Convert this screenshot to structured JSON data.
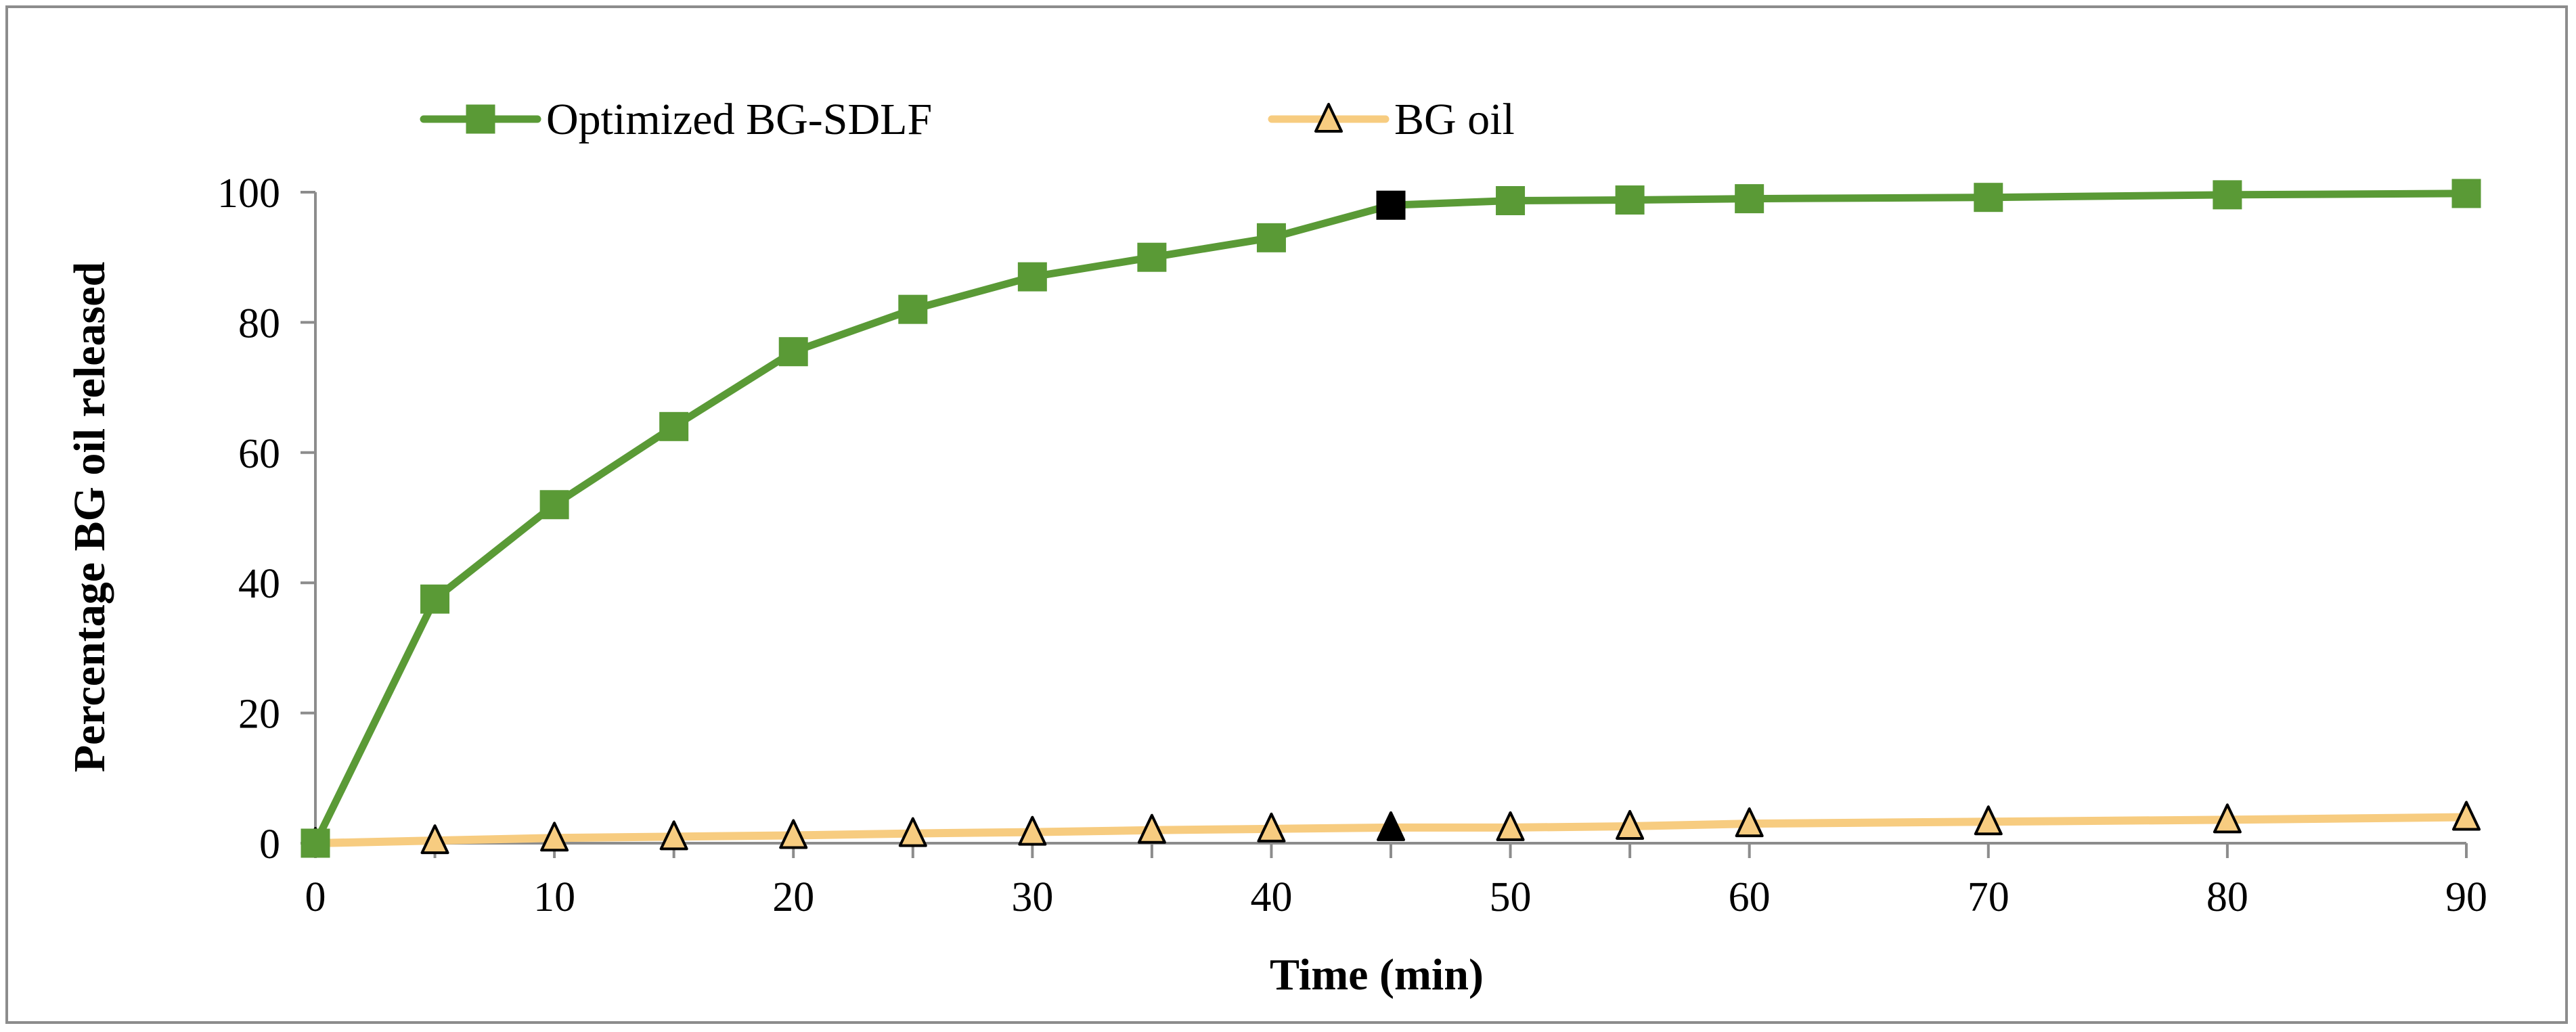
{
  "chart_data": {
    "type": "line",
    "xlabel": "Time (min)",
    "ylabel": "Percentage BG oil released",
    "x": [
      0,
      5,
      10,
      15,
      20,
      25,
      30,
      35,
      40,
      45,
      50,
      55,
      60,
      70,
      80,
      90
    ],
    "x_ticks": [
      0,
      10,
      20,
      30,
      40,
      50,
      60,
      70,
      80,
      90
    ],
    "y_ticks": [
      0,
      20,
      40,
      60,
      80,
      100
    ],
    "xlim": [
      0,
      90
    ],
    "ylim": [
      0,
      100
    ],
    "legend_position": "top",
    "series": [
      {
        "name": "Optimized BG-SDLF",
        "color": "#5a9a36",
        "marker": "square",
        "values": [
          0,
          37.5,
          52,
          64,
          75.5,
          82,
          87,
          90,
          93,
          98,
          98.7,
          98.8,
          99,
          99.2,
          99.6,
          99.8
        ]
      },
      {
        "name": "BG oil",
        "color": "#f7cc80",
        "marker": "triangle",
        "values": [
          0,
          0.4,
          0.8,
          1.0,
          1.2,
          1.5,
          1.7,
          2.0,
          2.2,
          2.4,
          2.4,
          2.6,
          3.0,
          3.3,
          3.6,
          4.0
        ]
      }
    ],
    "highlight_x": 45,
    "highlight_color": "#000000"
  }
}
